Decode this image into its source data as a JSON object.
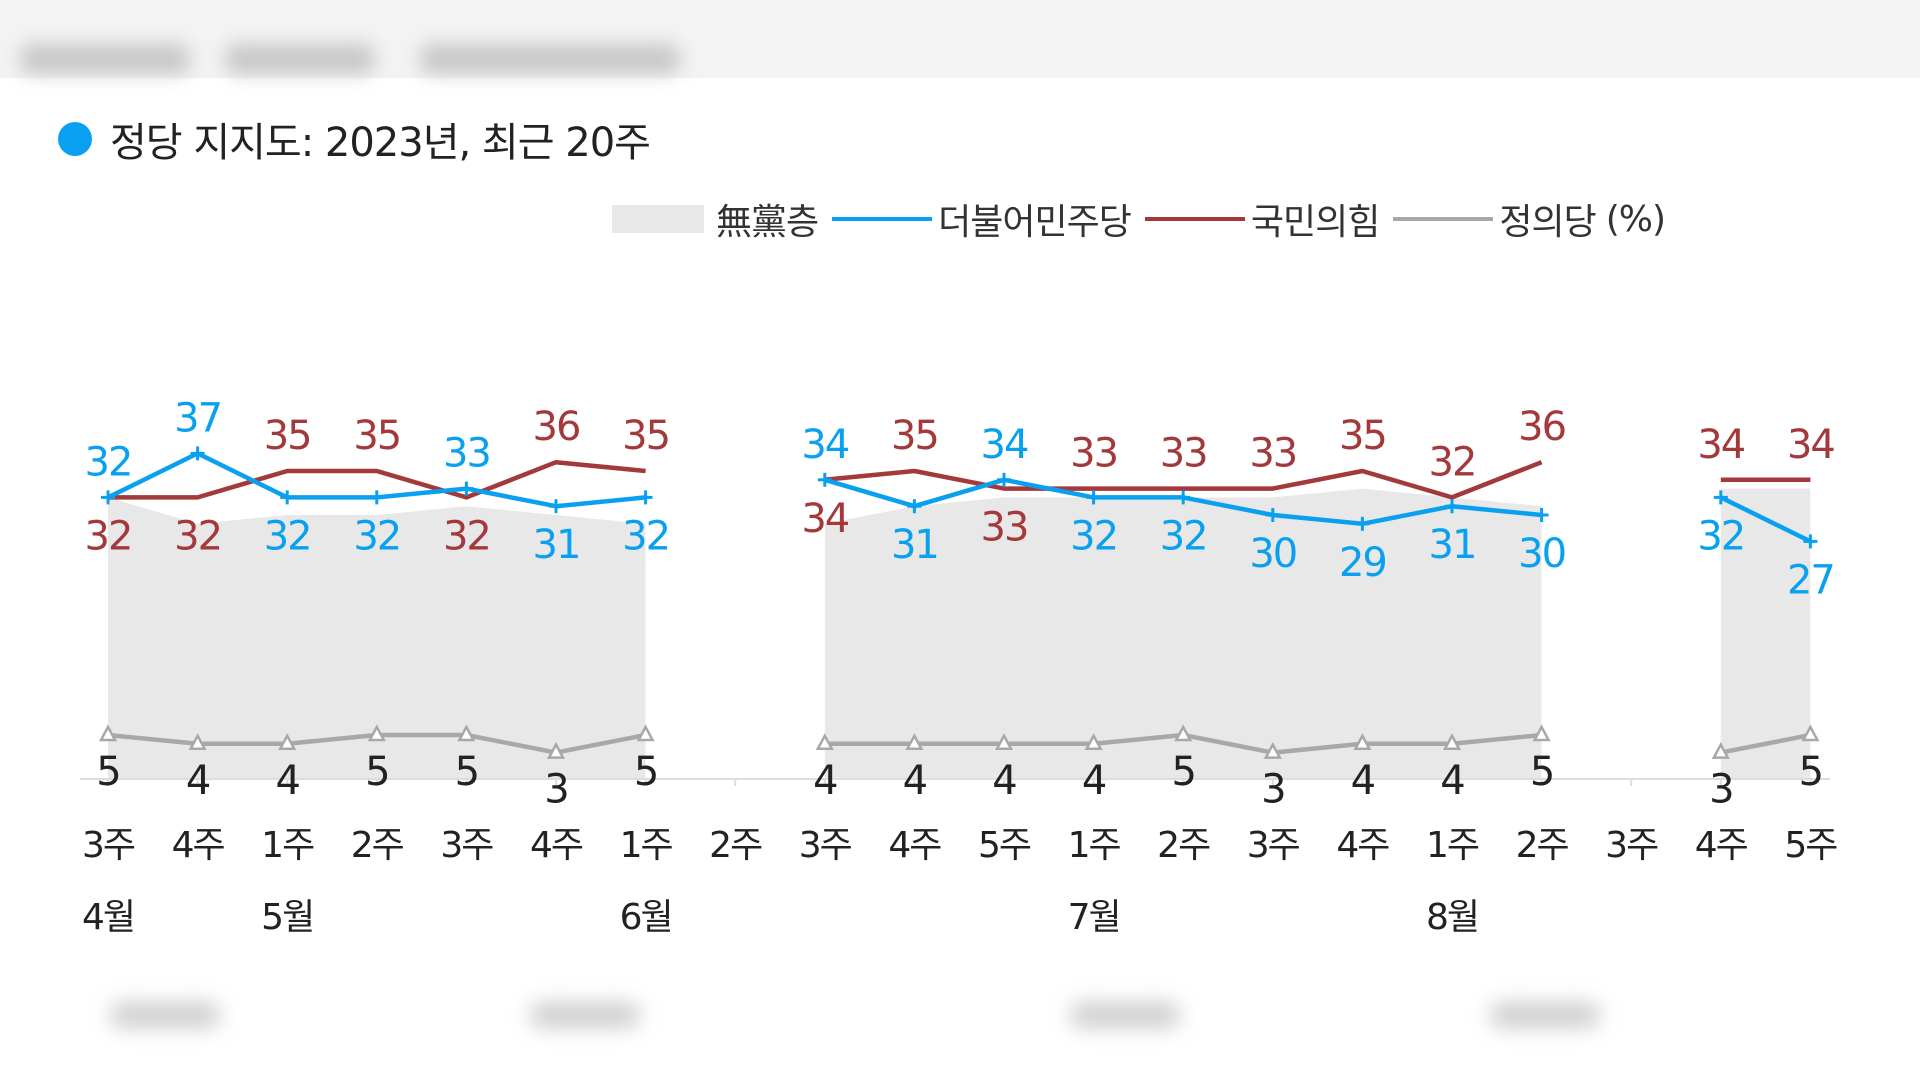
{
  "title": "정당 지지도: 2023년, 최근 20주",
  "legend": {
    "unaffiliated": "無黨층",
    "democratic": "더불어민주당",
    "ppp": "국민의힘",
    "justice": "정의당",
    "unit": "(%)"
  },
  "colors": {
    "title_dot": "#0aa0f0",
    "democratic": "#0aa0f0",
    "ppp": "#a3393b",
    "justice": "#a8a8a8",
    "unaffiliated": "#e8e8e8"
  },
  "chart_data": {
    "type": "line",
    "title": "정당 지지도: 2023년, 최근 20주",
    "unit": "%",
    "x": [
      "3주",
      "4주",
      "1주",
      "2주",
      "3주",
      "4주",
      "1주",
      "2주",
      "3주",
      "4주",
      "5주",
      "1주",
      "2주",
      "3주",
      "4주",
      "1주",
      "2주",
      "3주",
      "4주",
      "5주"
    ],
    "months": [
      {
        "label": "4월",
        "index": 0
      },
      {
        "label": "5월",
        "index": 2
      },
      {
        "label": "6월",
        "index": 6
      },
      {
        "label": "7월",
        "index": 11
      },
      {
        "label": "8월",
        "index": 15
      }
    ],
    "series": [
      {
        "name": "더불어민주당",
        "key": "democratic",
        "style": "line",
        "values": [
          32,
          37,
          32,
          32,
          33,
          31,
          32,
          null,
          34,
          31,
          34,
          32,
          32,
          30,
          29,
          31,
          30,
          null,
          32,
          27
        ]
      },
      {
        "name": "국민의힘",
        "key": "ppp",
        "style": "line",
        "values": [
          32,
          32,
          35,
          35,
          32,
          36,
          35,
          null,
          34,
          35,
          33,
          33,
          33,
          33,
          35,
          32,
          36,
          null,
          34,
          34
        ]
      },
      {
        "name": "정의당",
        "key": "justice",
        "style": "line",
        "values": [
          5,
          4,
          4,
          5,
          5,
          3,
          5,
          null,
          4,
          4,
          4,
          4,
          5,
          3,
          4,
          4,
          5,
          null,
          3,
          5
        ]
      },
      {
        "name": "無黨층",
        "key": "unaffiliated",
        "style": "area",
        "values": [
          32,
          29,
          30,
          30,
          31,
          30,
          29,
          null,
          29,
          31,
          32,
          32,
          32,
          32,
          33,
          32,
          31,
          null,
          33,
          33
        ]
      }
    ],
    "ylim": [
      0,
      45
    ],
    "grid": false,
    "legend_position": "top-right"
  }
}
